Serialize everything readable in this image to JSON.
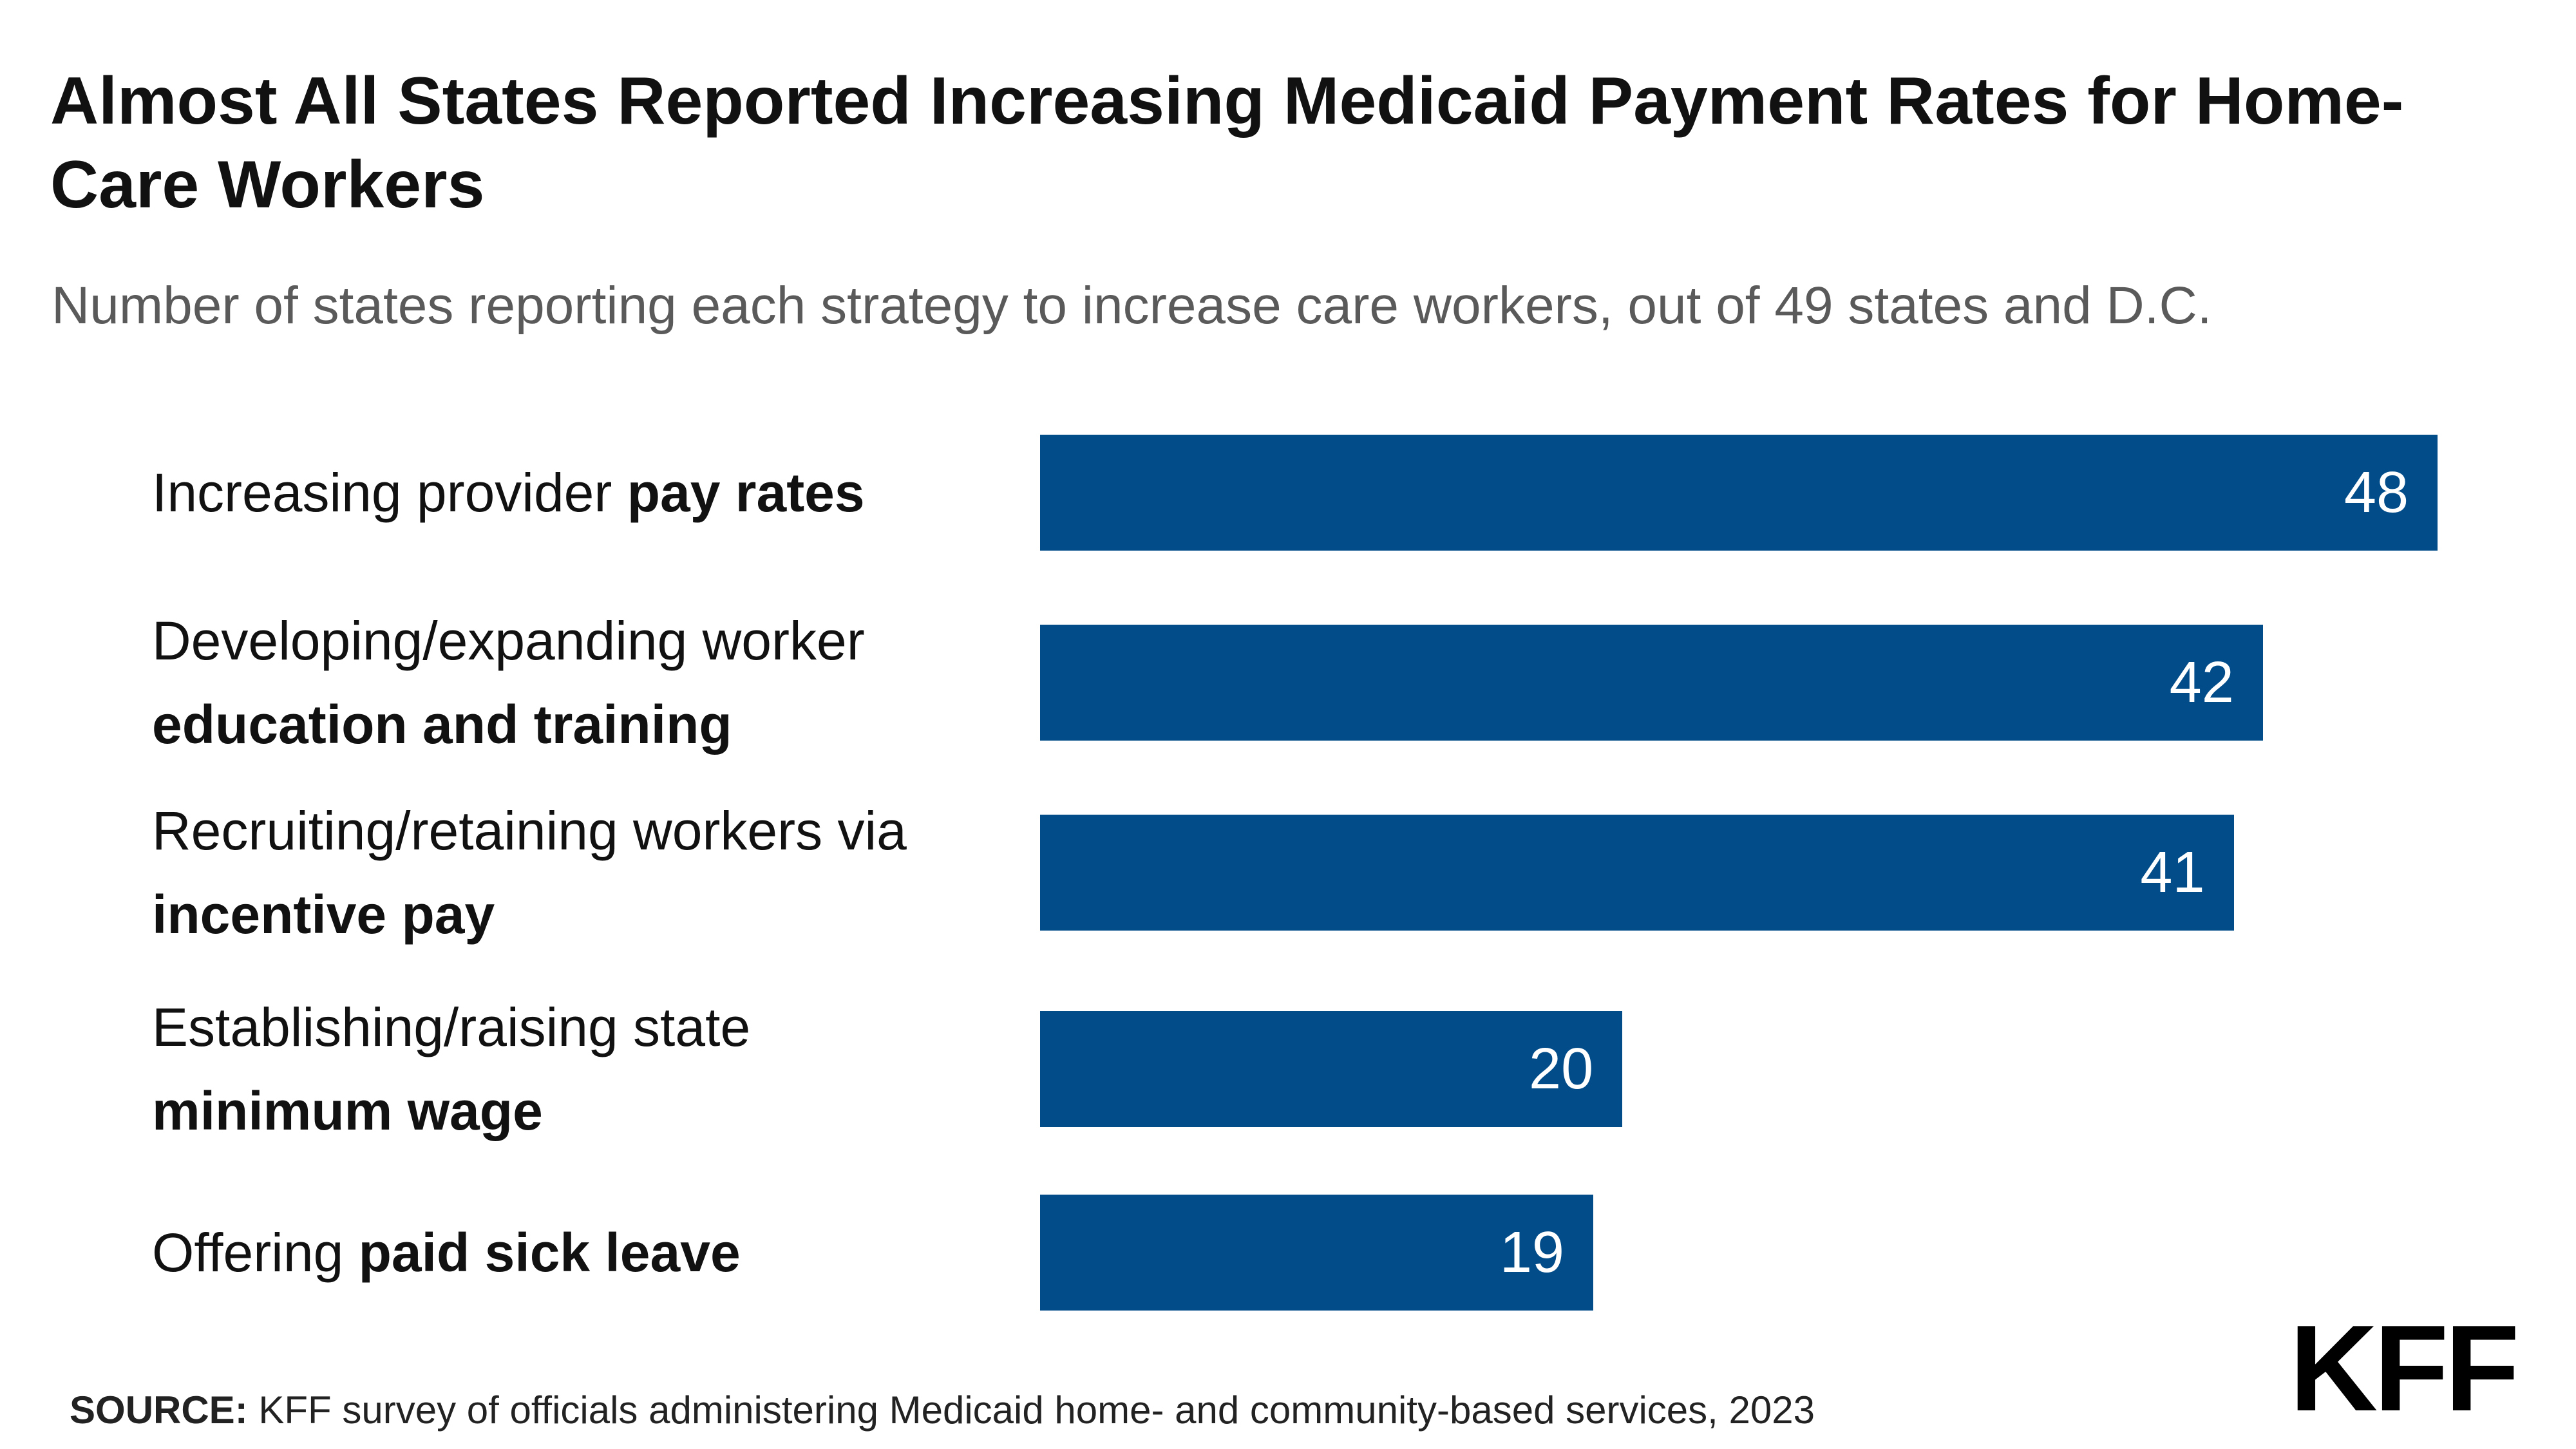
{
  "title": "Almost All States Reported Increasing Medicaid Payment Rates for Home-Care Workers",
  "subtitle": "Number of states reporting each strategy to increase care workers, out of 49 states and D.C.",
  "source_label": "SOURCE:",
  "source_text": "KFF survey of officials administering Medicaid home- and community-based services, 2023",
  "logo_text": "KFF",
  "colors": {
    "bar": "#024C8A",
    "title": "#111111",
    "subtitle": "#5a5a5a",
    "value_label": "#ffffff"
  },
  "chart_data": {
    "type": "bar",
    "orientation": "horizontal",
    "title": "Almost All States Reported Increasing Medicaid Payment Rates for Home-Care Workers",
    "subtitle": "Number of states reporting each strategy to increase care workers, out of 49 states and D.C.",
    "categories": [
      "Increasing provider pay rates",
      "Developing/expanding worker education and training",
      "Recruiting/retaining workers via incentive pay",
      "Establishing/raising state minimum wage",
      "Offering paid sick leave"
    ],
    "category_parts": [
      {
        "normal": "Increasing provider ",
        "bold": "pay rates"
      },
      {
        "normal": "Developing/expanding worker ",
        "bold": "education and training"
      },
      {
        "normal": "Recruiting/retaining workers via ",
        "bold": "incentive pay"
      },
      {
        "normal": "Establishing/raising state ",
        "bold": "minimum wage"
      },
      {
        "normal": "Offering ",
        "bold": "paid sick leave"
      }
    ],
    "values": [
      48,
      42,
      41,
      20,
      19
    ],
    "data_labels": [
      "48",
      "42",
      "41",
      "20",
      "19"
    ],
    "xlim": [
      0,
      48
    ],
    "grid": false,
    "legend": "none"
  }
}
